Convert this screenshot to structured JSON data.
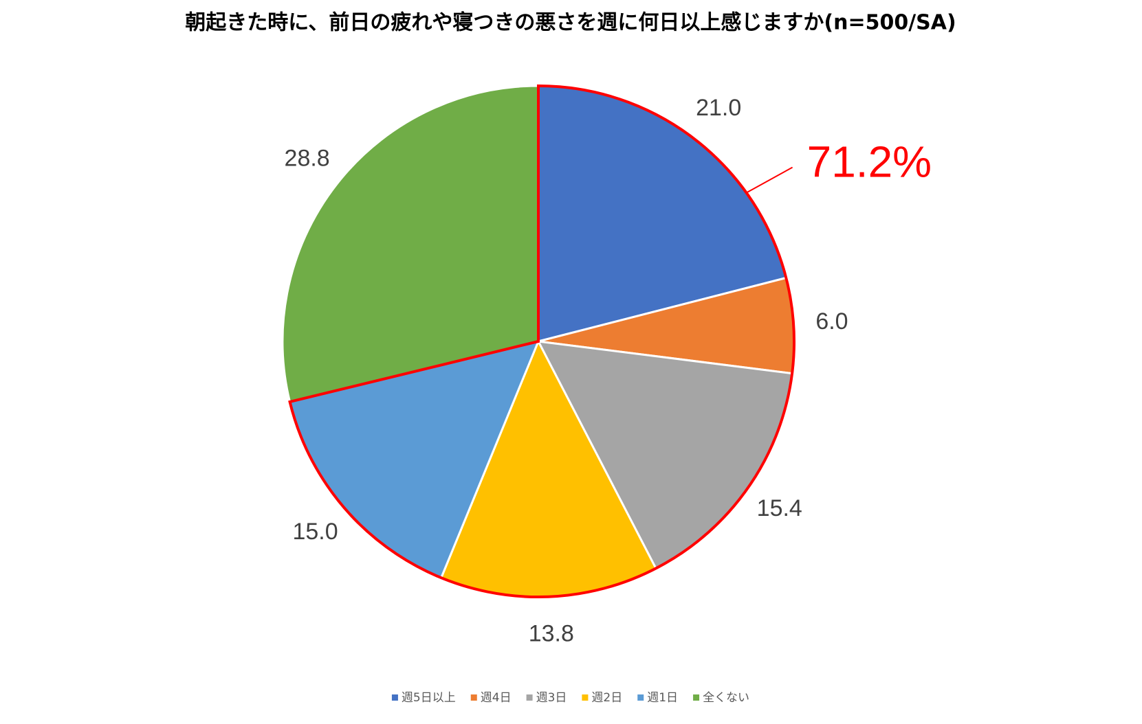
{
  "chart_data": {
    "type": "pie",
    "title": "朝起きた時に、前日の疲れや寝つきの悪さを週に何日以上感じますか(n=500/SA)",
    "categories": [
      "週5日以上",
      "週4日",
      "週3日",
      "週2日",
      "週1日",
      "全くない"
    ],
    "values": [
      21.0,
      6.0,
      15.4,
      13.8,
      15.0,
      28.8
    ],
    "value_labels": [
      "21.0",
      "6.0",
      "15.4",
      "13.8",
      "15.0",
      "28.8"
    ],
    "colors": [
      "#4472c4",
      "#ed7d31",
      "#a5a5a5",
      "#ffc000",
      "#5b9bd5",
      "#70ad47"
    ],
    "annotation": "71.2%",
    "legend": "bottom"
  }
}
